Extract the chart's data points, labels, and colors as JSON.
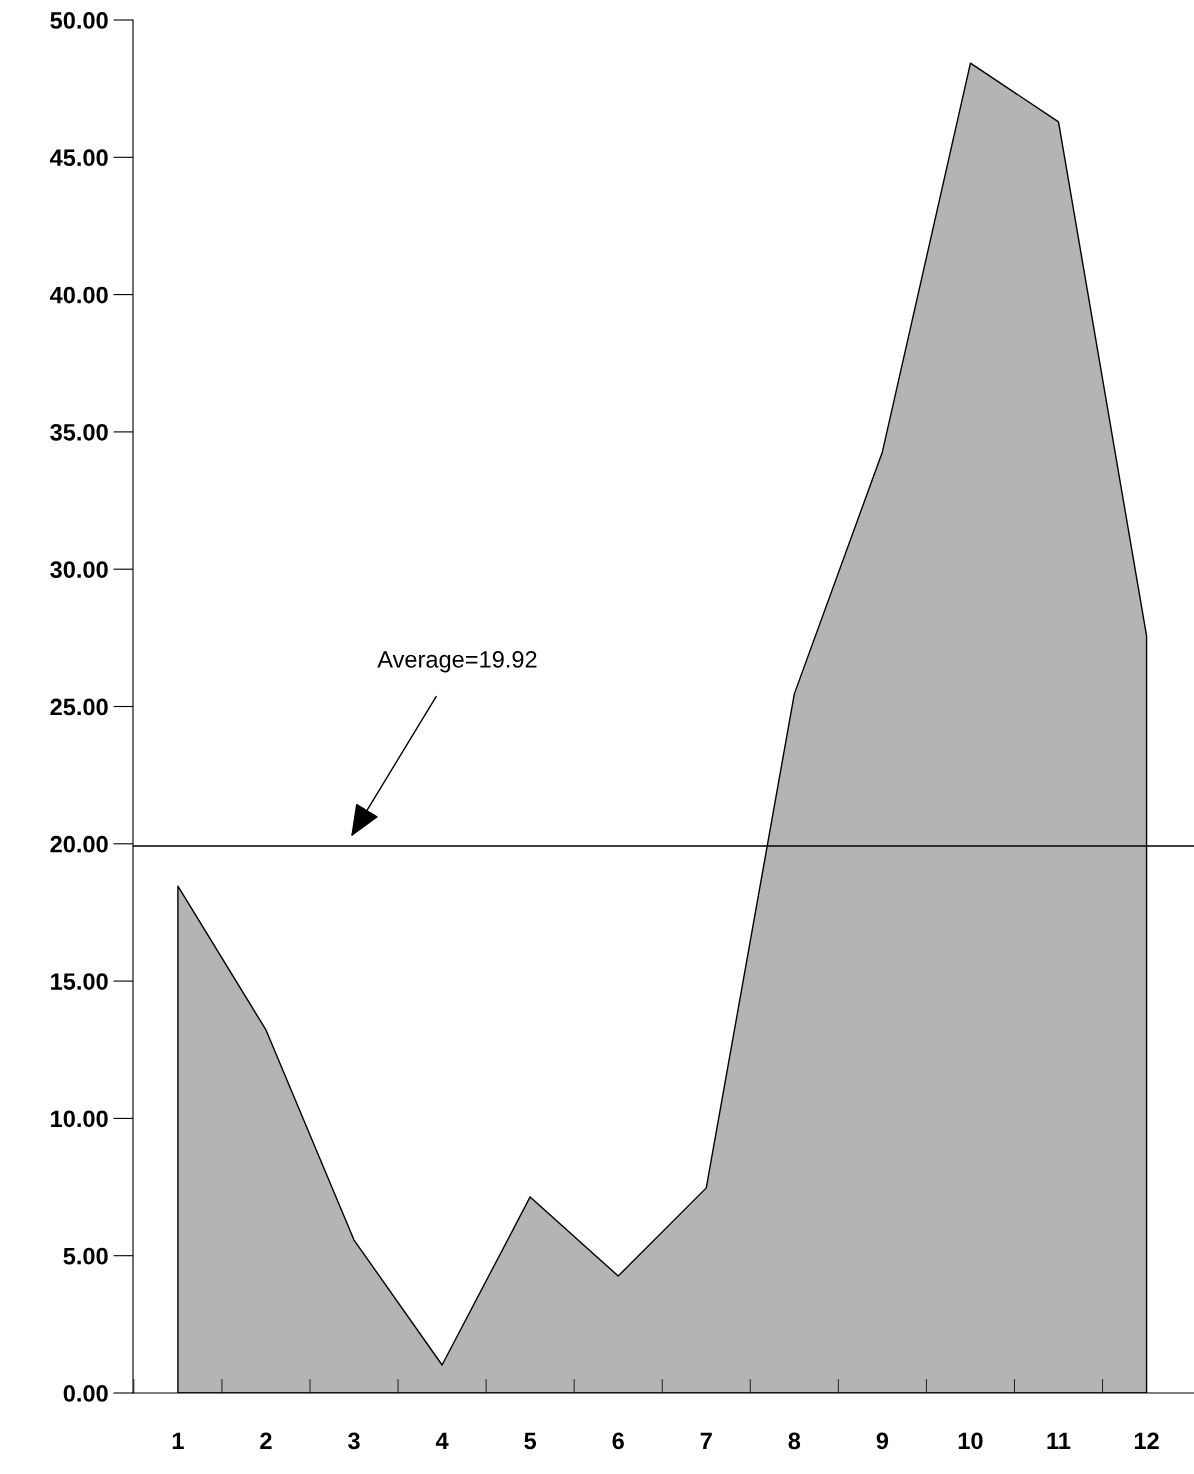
{
  "chart_data": {
    "type": "area",
    "categories": [
      "1",
      "2",
      "3",
      "4",
      "5",
      "6",
      "7",
      "8",
      "9",
      "10",
      "11",
      "12"
    ],
    "series": [
      {
        "color": "#b4b4b4",
        "values": [
          18.46,
          13.22,
          5.57,
          1.02,
          7.14,
          4.26,
          7.47,
          25.46,
          34.27,
          48.43,
          46.29,
          27.57
        ]
      }
    ],
    "ylim": [
      0,
      50
    ],
    "yticks": [
      {
        "value": 0,
        "label": "0.00"
      },
      {
        "value": 5,
        "label": "5.00"
      },
      {
        "value": 10,
        "label": "10.00"
      },
      {
        "value": 15,
        "label": "15.00"
      },
      {
        "value": 20,
        "label": "20.00"
      },
      {
        "value": 25,
        "label": "25.00"
      },
      {
        "value": 30,
        "label": "30.00"
      },
      {
        "value": 35,
        "label": "35.00"
      },
      {
        "value": 40,
        "label": "40.00"
      },
      {
        "value": 45,
        "label": "45.00"
      },
      {
        "value": 50,
        "label": "50.00"
      }
    ],
    "ref_lines": [
      {
        "axis": "y",
        "value": 19.92,
        "label": "Average=19.92",
        "color": "#000000"
      }
    ],
    "grid": false,
    "legend": false
  }
}
